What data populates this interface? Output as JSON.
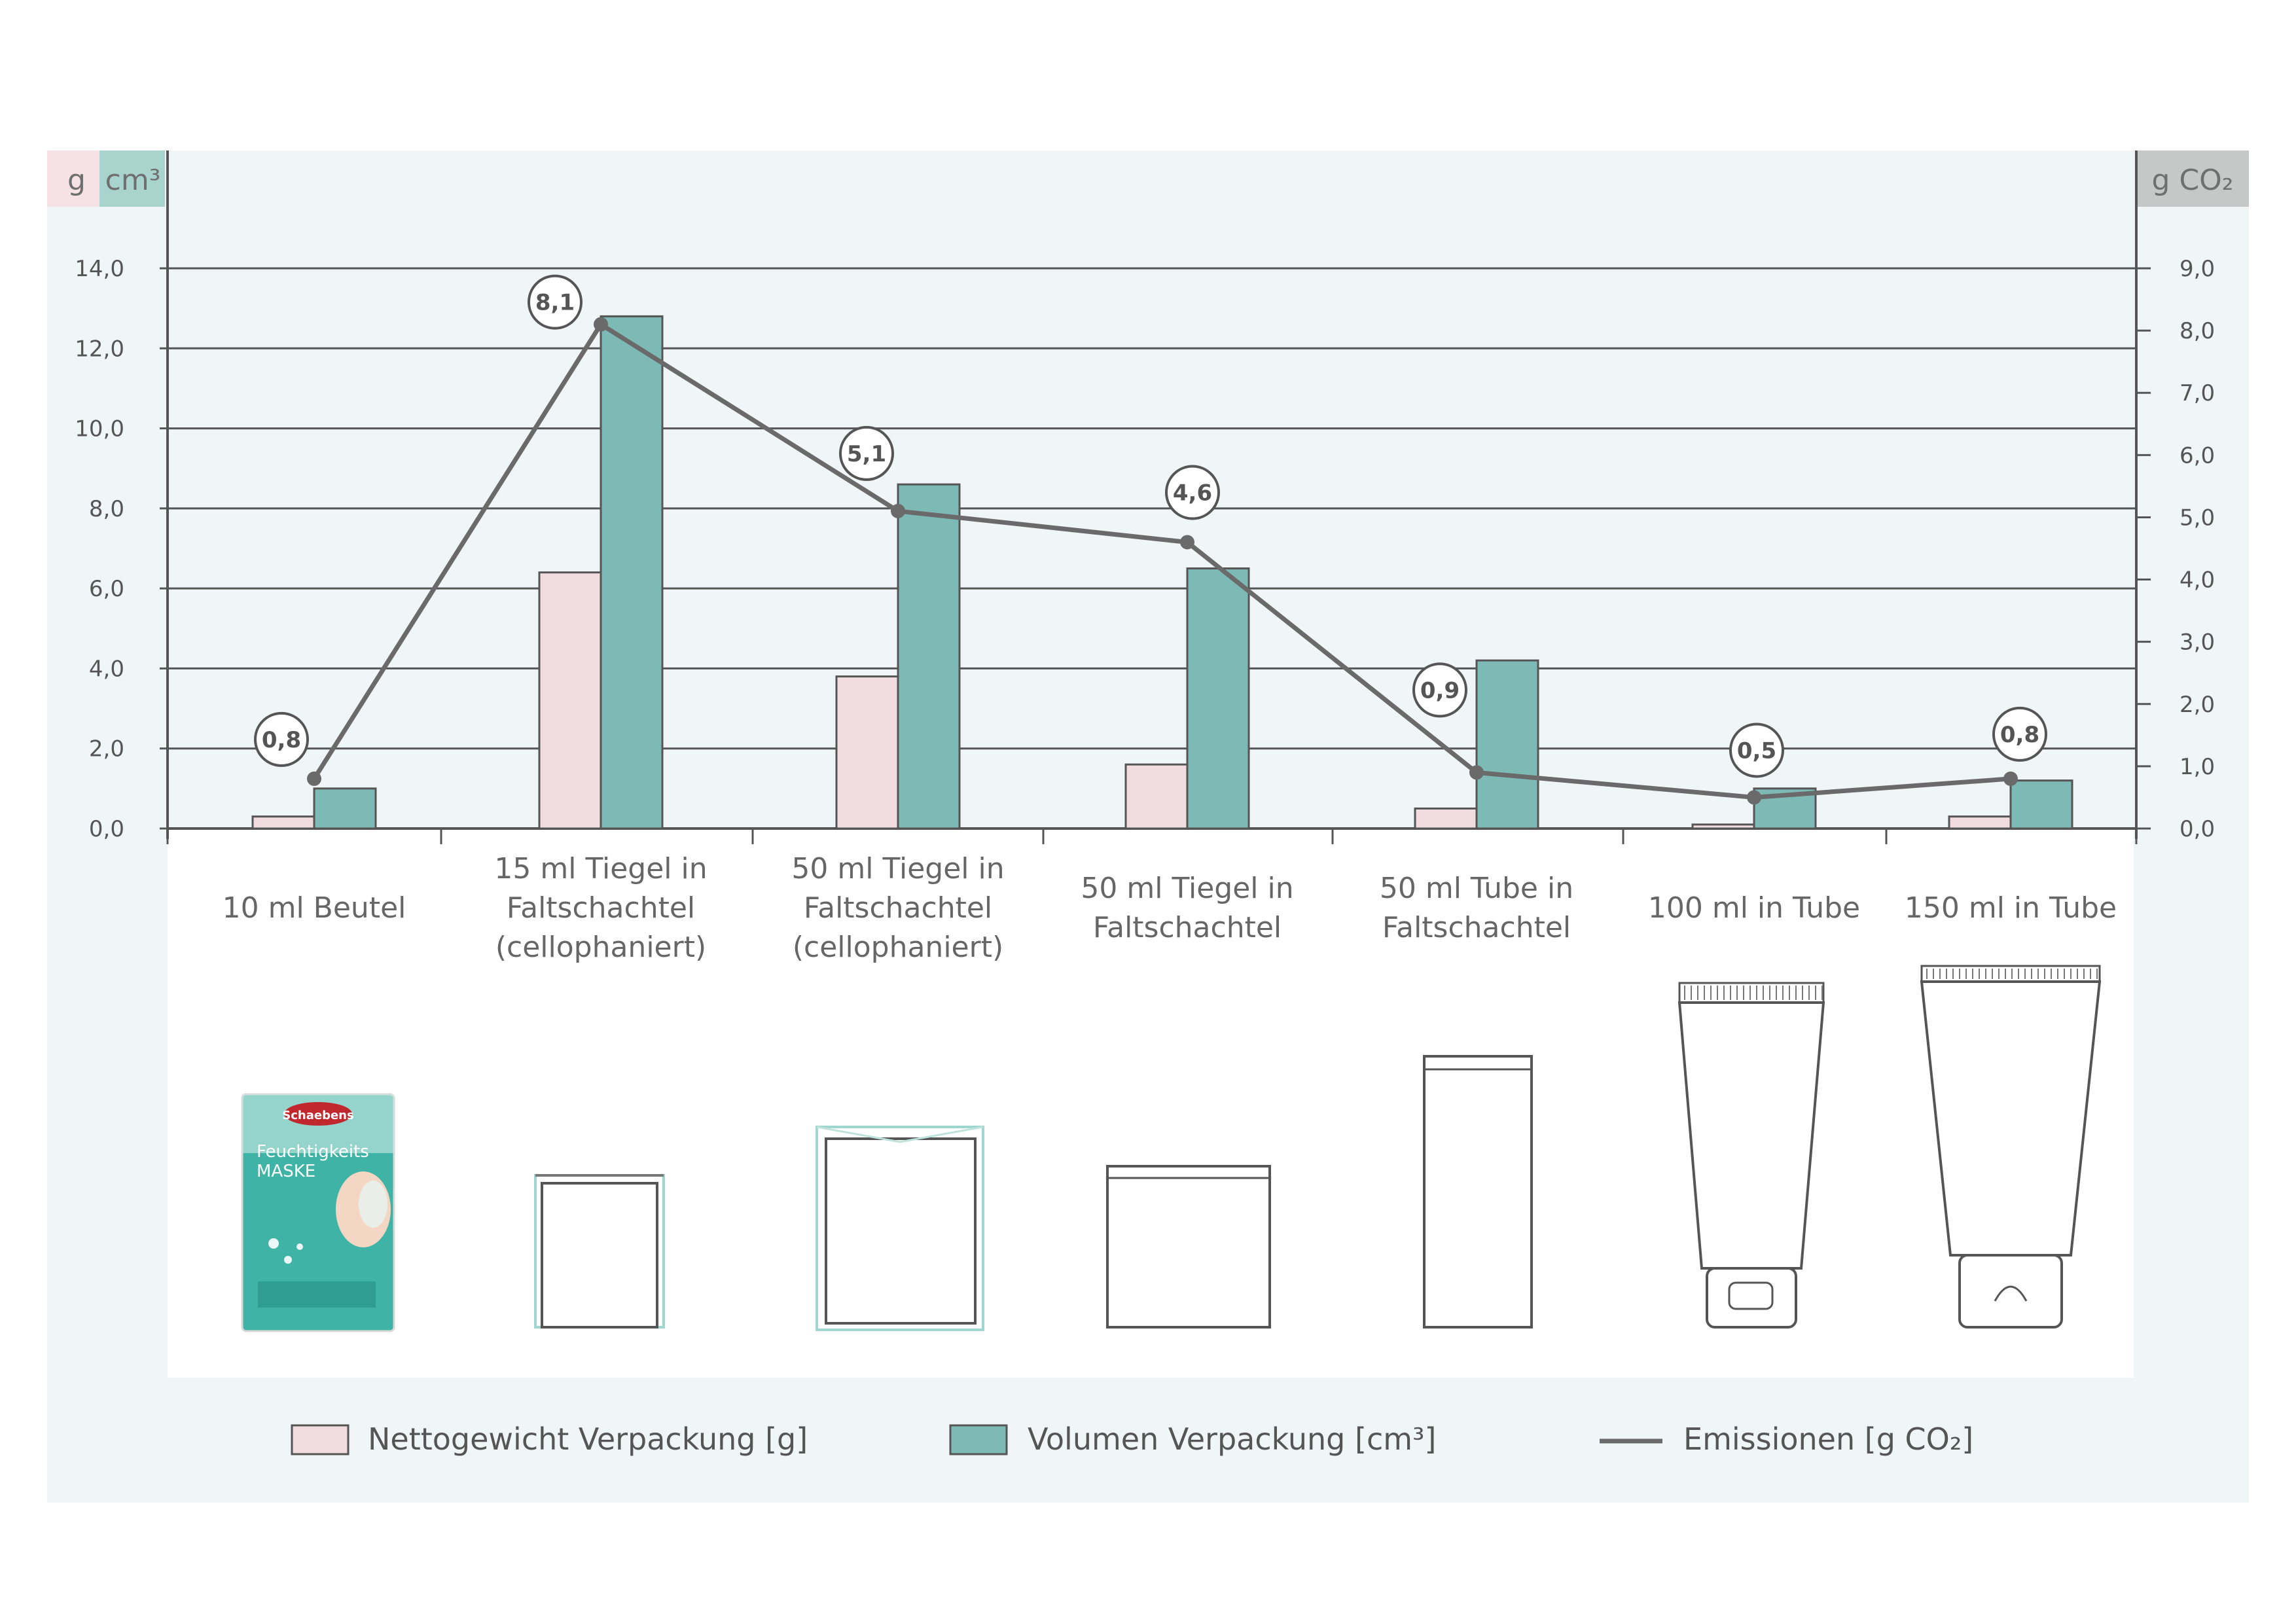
{
  "units": {
    "left_weight": "g",
    "left_volume": "cm³",
    "right_emissions": "g CO₂"
  },
  "legend": {
    "weight": "Nettogewicht Verpackung [g]",
    "volume": "Volumen Verpackung  [cm³]",
    "emissions": "Emissionen  [g CO₂]"
  },
  "colors": {
    "weight": "#f1dde0",
    "volume": "#7dbab5",
    "emissions": "#6a6a6a",
    "plot_bg": "#f0f5f7",
    "grid": "#555555"
  },
  "package_illustration": {
    "brand": "Schaebens",
    "title_1": "Feuchtigkeits",
    "title_2": "MASKE"
  },
  "chart_data": {
    "type": "bar",
    "categories": [
      [
        "10 ml Beutel"
      ],
      [
        "15 ml Tiegel in",
        "Faltschachtel",
        "(cellophaniert)"
      ],
      [
        "50 ml Tiegel in",
        "Faltschachtel",
        "(cellophaniert)"
      ],
      [
        "50 ml Tiegel in",
        "Faltschachtel"
      ],
      [
        "50 ml Tube in",
        "Faltschachtel"
      ],
      [
        "100 ml in Tube"
      ],
      [
        "150 ml in Tube"
      ]
    ],
    "series": [
      {
        "name": "Nettogewicht Verpackung [g]",
        "type": "bar",
        "axis": "left",
        "values": [
          0.3,
          6.4,
          3.8,
          1.6,
          0.5,
          0.1,
          0.3
        ]
      },
      {
        "name": "Volumen Verpackung  [cm³]",
        "type": "bar",
        "axis": "left",
        "values": [
          1.0,
          12.8,
          8.6,
          6.5,
          4.2,
          1.0,
          1.2
        ]
      },
      {
        "name": "Emissionen  [g CO₂]",
        "type": "line",
        "axis": "right",
        "values": [
          0.8,
          8.1,
          5.1,
          4.6,
          0.9,
          0.5,
          0.8
        ],
        "labels": [
          "0,8",
          "8,1",
          "5,1",
          "4,6",
          "0,9",
          "0,5",
          "0,8"
        ]
      }
    ],
    "y_left": {
      "ylim": [
        0,
        14
      ],
      "ticks": [
        "0,0",
        "2,0",
        "4,0",
        "6,0",
        "8,0",
        "10,0",
        "12,0",
        "14,0"
      ]
    },
    "y_right": {
      "ylim": [
        0,
        9
      ],
      "ticks": [
        "0,0",
        "1,0",
        "2,0",
        "3,0",
        "4,0",
        "5,0",
        "6,0",
        "7,0",
        "8,0",
        "9,0"
      ]
    },
    "grid": true,
    "legend_position": "bottom"
  }
}
